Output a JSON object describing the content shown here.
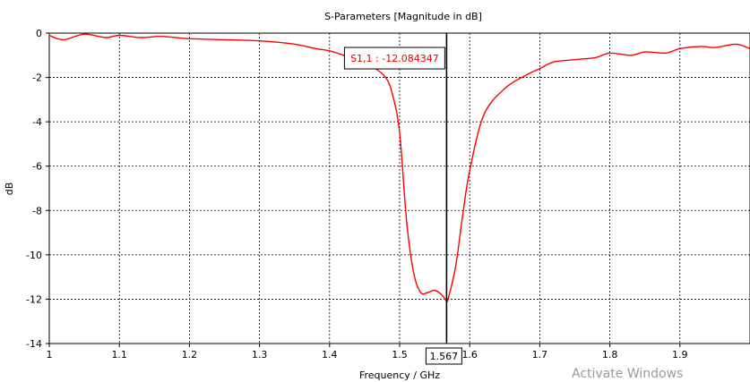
{
  "chart_data": {
    "type": "line",
    "title": "S-Parameters [Magnitude in dB]",
    "xlabel": "Frequency / GHz",
    "ylabel": "dB",
    "xlim": [
      1.0,
      2.0
    ],
    "ylim": [
      -14,
      0
    ],
    "x_ticks": [
      1,
      1.1,
      1.2,
      1.3,
      1.4,
      1.5,
      1.6,
      1.7,
      1.8,
      1.9
    ],
    "y_ticks": [
      0,
      -2,
      -4,
      -6,
      -8,
      -10,
      -12,
      -14
    ],
    "grid": true,
    "line_color": "#ff0000",
    "series": [
      {
        "name": "S1,1",
        "x": [
          1.0,
          1.02,
          1.05,
          1.08,
          1.1,
          1.13,
          1.16,
          1.2,
          1.25,
          1.3,
          1.35,
          1.38,
          1.4,
          1.42,
          1.44,
          1.46,
          1.48,
          1.49,
          1.5,
          1.51,
          1.52,
          1.53,
          1.54,
          1.55,
          1.56,
          1.567,
          1.57,
          1.58,
          1.59,
          1.6,
          1.62,
          1.65,
          1.68,
          1.7,
          1.72,
          1.75,
          1.78,
          1.8,
          1.83,
          1.85,
          1.88,
          1.9,
          1.93,
          1.95,
          1.98,
          2.0
        ],
        "values": [
          -0.1,
          -0.3,
          -0.05,
          -0.2,
          -0.1,
          -0.2,
          -0.15,
          -0.25,
          -0.3,
          -0.35,
          -0.5,
          -0.7,
          -0.8,
          -1.0,
          -1.3,
          -1.5,
          -2.0,
          -2.8,
          -4.5,
          -8.5,
          -10.8,
          -11.7,
          -11.7,
          -11.6,
          -11.8,
          -12.08,
          -11.9,
          -10.5,
          -8.2,
          -6.2,
          -3.7,
          -2.5,
          -1.9,
          -1.6,
          -1.3,
          -1.2,
          -1.1,
          -0.9,
          -1.0,
          -0.85,
          -0.9,
          -0.7,
          -0.6,
          -0.65,
          -0.5,
          -0.7
        ]
      }
    ],
    "marker": {
      "x": 1.567,
      "label": "1.567",
      "readout": "S1,1 : -12.084347"
    }
  },
  "watermark": "Activate Windows"
}
